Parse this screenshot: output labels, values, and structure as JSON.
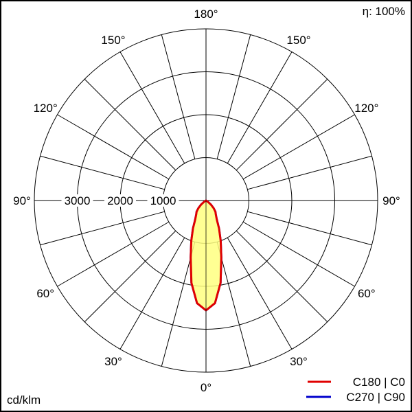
{
  "chart_data": {
    "type": "polar-line",
    "efficiency_label": "η: 100%",
    "unit_label": "cd/klm",
    "radial_ticks": [
      1000,
      2000,
      3000
    ],
    "radial_max": 4000,
    "angle_ticks": [
      "180°",
      "150°",
      "150°",
      "120°",
      "120°",
      "90°",
      "90°",
      "60°",
      "60°",
      "30°",
      "30°",
      "0°"
    ],
    "angles_deg": [
      0,
      5,
      10,
      15,
      20,
      25,
      30,
      35,
      40,
      45,
      50,
      55,
      60,
      90
    ],
    "series": [
      {
        "name": "C270 | C90",
        "color": "#0000cc",
        "values": [
          2560,
          2400,
          1950,
          1380,
          1000,
          720,
          500,
          400,
          340,
          250,
          150,
          60,
          0,
          0
        ]
      },
      {
        "name": "C180 | C0",
        "color": "#e00000",
        "fill": "#ffff80",
        "values": [
          2560,
          2400,
          1950,
          1380,
          1000,
          720,
          500,
          400,
          340,
          250,
          150,
          60,
          0,
          0
        ]
      }
    ],
    "grid": true,
    "legend": "bottom-right"
  }
}
